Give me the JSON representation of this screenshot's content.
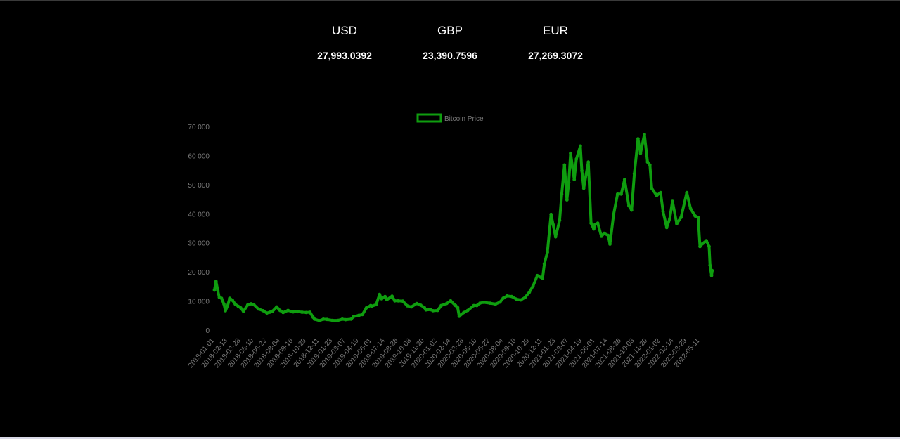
{
  "prices": [
    {
      "currency": "USD",
      "rate": "27,993.0392"
    },
    {
      "currency": "GBP",
      "rate": "23,390.7596"
    },
    {
      "currency": "EUR",
      "rate": "27,269.3072"
    }
  ],
  "colors": {
    "background": "#000000",
    "line": "#0f9d0f",
    "text": "#ffffff",
    "tick": "#7a7a7a"
  },
  "chart_data": {
    "type": "line",
    "legend": {
      "position": "top",
      "label": "Bitcoin Price"
    },
    "grid": false,
    "ylim": [
      0,
      70000
    ],
    "y_ticks": [
      "0",
      "10 000",
      "20 000",
      "30 000",
      "40 000",
      "50 000",
      "60 000",
      "70 000"
    ],
    "x_ticks": [
      "2018-01-01",
      "2018-02-13",
      "2018-03-28",
      "2018-05-10",
      "2018-06-22",
      "2018-08-04",
      "2018-09-16",
      "2018-10-29",
      "2018-12-11",
      "2019-01-23",
      "2019-03-07",
      "2019-04-19",
      "2019-06-01",
      "2019-07-14",
      "2019-08-26",
      "2019-10-08",
      "2019-11-20",
      "2020-01-02",
      "2020-02-14",
      "2020-03-28",
      "2020-05-10",
      "2020-06-22",
      "2020-08-04",
      "2020-09-16",
      "2020-10-29",
      "2020-12-11",
      "2021-01-23",
      "2021-03-07",
      "2021-04-19",
      "2021-06-01",
      "2021-07-14",
      "2021-08-26",
      "2021-10-08",
      "2021-11-20",
      "2022-01-02",
      "2022-02-14",
      "2022-03-29",
      "2022-05-11"
    ],
    "x_end": "2022-06-18",
    "series": [
      {
        "name": "Bitcoin Price",
        "points": [
          [
            "2018-01-01",
            14000
          ],
          [
            "2018-01-06",
            17000
          ],
          [
            "2018-01-12",
            13800
          ],
          [
            "2018-01-17",
            11500
          ],
          [
            "2018-01-24",
            11200
          ],
          [
            "2018-02-01",
            9200
          ],
          [
            "2018-02-06",
            6900
          ],
          [
            "2018-02-13",
            8600
          ],
          [
            "2018-02-20",
            11200
          ],
          [
            "2018-03-01",
            10500
          ],
          [
            "2018-03-10",
            9200
          ],
          [
            "2018-03-20",
            8400
          ],
          [
            "2018-03-28",
            7900
          ],
          [
            "2018-04-06",
            6700
          ],
          [
            "2018-04-20",
            8900
          ],
          [
            "2018-05-01",
            9300
          ],
          [
            "2018-05-10",
            9000
          ],
          [
            "2018-05-25",
            7500
          ],
          [
            "2018-06-10",
            6900
          ],
          [
            "2018-06-22",
            6100
          ],
          [
            "2018-07-01",
            6400
          ],
          [
            "2018-07-10",
            6700
          ],
          [
            "2018-07-24",
            8200
          ],
          [
            "2018-08-04",
            7000
          ],
          [
            "2018-08-14",
            6300
          ],
          [
            "2018-08-30",
            7000
          ],
          [
            "2018-09-16",
            6500
          ],
          [
            "2018-10-01",
            6600
          ],
          [
            "2018-10-15",
            6400
          ],
          [
            "2018-10-29",
            6300
          ],
          [
            "2018-11-10",
            6400
          ],
          [
            "2018-11-20",
            4700
          ],
          [
            "2018-11-25",
            4000
          ],
          [
            "2018-12-11",
            3500
          ],
          [
            "2018-12-24",
            4000
          ],
          [
            "2019-01-05",
            3900
          ],
          [
            "2019-01-23",
            3600
          ],
          [
            "2019-02-10",
            3600
          ],
          [
            "2019-02-24",
            4000
          ],
          [
            "2019-03-07",
            3850
          ],
          [
            "2019-03-25",
            4000
          ],
          [
            "2019-04-02",
            4900
          ],
          [
            "2019-04-19",
            5300
          ],
          [
            "2019-05-01",
            5600
          ],
          [
            "2019-05-14",
            7900
          ],
          [
            "2019-05-28",
            8700
          ],
          [
            "2019-06-01",
            8500
          ],
          [
            "2019-06-15",
            9000
          ],
          [
            "2019-06-26",
            12500
          ],
          [
            "2019-07-03",
            11000
          ],
          [
            "2019-07-14",
            11800
          ],
          [
            "2019-07-20",
            10700
          ],
          [
            "2019-08-06",
            11900
          ],
          [
            "2019-08-15",
            10300
          ],
          [
            "2019-08-26",
            10300
          ],
          [
            "2019-09-10",
            10200
          ],
          [
            "2019-09-25",
            8600
          ],
          [
            "2019-10-08",
            8200
          ],
          [
            "2019-10-26",
            9400
          ],
          [
            "2019-11-08",
            8800
          ],
          [
            "2019-11-20",
            8000
          ],
          [
            "2019-11-25",
            7200
          ],
          [
            "2019-12-10",
            7300
          ],
          [
            "2019-12-18",
            6900
          ],
          [
            "2020-01-02",
            7000
          ],
          [
            "2020-01-14",
            8700
          ],
          [
            "2020-02-01",
            9400
          ],
          [
            "2020-02-14",
            10300
          ],
          [
            "2020-03-01",
            8700
          ],
          [
            "2020-03-08",
            8000
          ],
          [
            "2020-03-13",
            5000
          ],
          [
            "2020-03-28",
            6300
          ],
          [
            "2020-04-10",
            7000
          ],
          [
            "2020-04-30",
            8700
          ],
          [
            "2020-05-10",
            8700
          ],
          [
            "2020-05-20",
            9500
          ],
          [
            "2020-06-01",
            9800
          ],
          [
            "2020-06-22",
            9500
          ],
          [
            "2020-07-10",
            9200
          ],
          [
            "2020-07-25",
            9900
          ],
          [
            "2020-08-04",
            11200
          ],
          [
            "2020-08-17",
            12000
          ],
          [
            "2020-09-01",
            11800
          ],
          [
            "2020-09-16",
            10900
          ],
          [
            "2020-10-01",
            10600
          ],
          [
            "2020-10-15",
            11500
          ],
          [
            "2020-10-29",
            13300
          ],
          [
            "2020-11-10",
            15400
          ],
          [
            "2020-11-24",
            19000
          ],
          [
            "2020-12-11",
            18000
          ],
          [
            "2020-12-17",
            23000
          ],
          [
            "2020-12-27",
            27000
          ],
          [
            "2021-01-08",
            40000
          ],
          [
            "2021-01-15",
            36500
          ],
          [
            "2021-01-23",
            32300
          ],
          [
            "2021-02-05",
            38000
          ],
          [
            "2021-02-12",
            47000
          ],
          [
            "2021-02-21",
            57000
          ],
          [
            "2021-03-01",
            45000
          ],
          [
            "2021-03-07",
            51000
          ],
          [
            "2021-03-13",
            61000
          ],
          [
            "2021-03-25",
            52000
          ],
          [
            "2021-04-01",
            59000
          ],
          [
            "2021-04-14",
            63500
          ],
          [
            "2021-04-19",
            55000
          ],
          [
            "2021-04-25",
            49000
          ],
          [
            "2021-05-10",
            58000
          ],
          [
            "2021-05-19",
            37000
          ],
          [
            "2021-05-28",
            35000
          ],
          [
            "2021-06-01",
            36500
          ],
          [
            "2021-06-10",
            37000
          ],
          [
            "2021-06-22",
            32500
          ],
          [
            "2021-07-01",
            33500
          ],
          [
            "2021-07-14",
            32800
          ],
          [
            "2021-07-20",
            29800
          ],
          [
            "2021-08-01",
            40000
          ],
          [
            "2021-08-14",
            47000
          ],
          [
            "2021-08-26",
            47000
          ],
          [
            "2021-09-06",
            52000
          ],
          [
            "2021-09-20",
            43000
          ],
          [
            "2021-09-29",
            41500
          ],
          [
            "2021-10-08",
            54000
          ],
          [
            "2021-10-20",
            66000
          ],
          [
            "2021-10-28",
            61000
          ],
          [
            "2021-11-10",
            67500
          ],
          [
            "2021-11-20",
            58000
          ],
          [
            "2021-11-28",
            57000
          ],
          [
            "2021-12-04",
            49000
          ],
          [
            "2021-12-20",
            46500
          ],
          [
            "2022-01-02",
            47500
          ],
          [
            "2022-01-10",
            41000
          ],
          [
            "2022-01-22",
            35500
          ],
          [
            "2022-02-01",
            38500
          ],
          [
            "2022-02-10",
            44500
          ],
          [
            "2022-02-24",
            36800
          ],
          [
            "2022-03-10",
            39000
          ],
          [
            "2022-03-29",
            47500
          ],
          [
            "2022-04-10",
            42000
          ],
          [
            "2022-04-25",
            39500
          ],
          [
            "2022-05-05",
            39000
          ],
          [
            "2022-05-11",
            29000
          ],
          [
            "2022-05-20",
            30000
          ],
          [
            "2022-06-01",
            31000
          ],
          [
            "2022-06-10",
            29000
          ],
          [
            "2022-06-13",
            22500
          ],
          [
            "2022-06-18",
            19000
          ],
          [
            "2022-06-20",
            20700
          ]
        ]
      }
    ]
  }
}
